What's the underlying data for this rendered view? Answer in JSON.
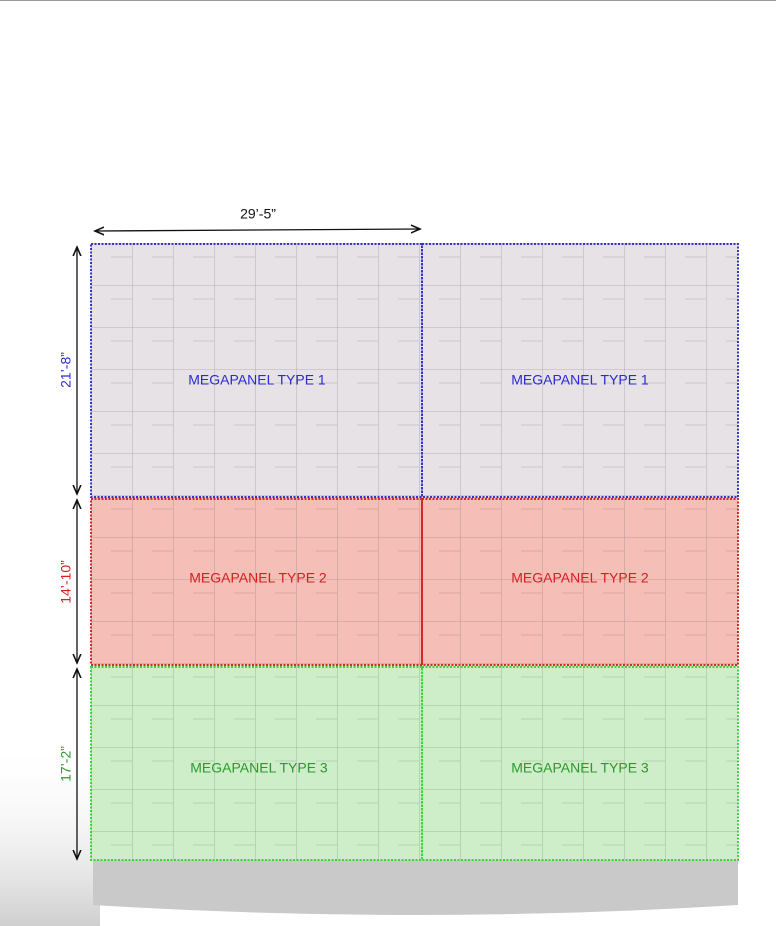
{
  "dimensions": {
    "width": "29’-5”",
    "heights": [
      "21’-8”",
      "14’-10”",
      "17’-2”"
    ]
  },
  "panels": [
    {
      "label": "MEGAPANEL TYPE 1"
    },
    {
      "label": "MEGAPANEL TYPE 1"
    },
    {
      "label": "MEGAPANEL TYPE 2"
    },
    {
      "label": "MEGAPANEL TYPE 2"
    },
    {
      "label": "MEGAPANEL TYPE 3"
    },
    {
      "label": "MEGAPANEL TYPE 3"
    }
  ]
}
